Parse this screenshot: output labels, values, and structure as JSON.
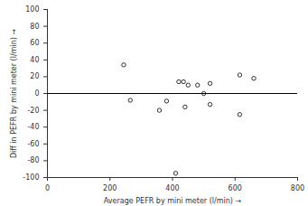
{
  "chart_data": {
    "type": "scatter",
    "x_label": "Average PEFR by mini meter (l/min)",
    "y_label": "Diff in PEFR by mini meter (l/min)",
    "x": [
      244,
      265,
      358,
      381,
      410,
      420,
      435,
      440,
      450,
      480,
      500,
      520,
      520,
      615,
      615,
      660
    ],
    "values": [
      34,
      -8,
      -20,
      -9,
      -95,
      14,
      14,
      -16,
      10,
      10,
      0,
      12,
      -13,
      -25,
      22,
      18
    ],
    "color": "#000000",
    "marker": "hollow_circle",
    "hline": 0,
    "xlim": [
      0,
      800
    ],
    "xticks": [
      0,
      200,
      400,
      600,
      800
    ],
    "ylim": [
      -100,
      100
    ],
    "yticks": [
      -100,
      -80,
      -60,
      -40,
      -20,
      0,
      20,
      40,
      60,
      80,
      100
    ],
    "grid": false
  }
}
